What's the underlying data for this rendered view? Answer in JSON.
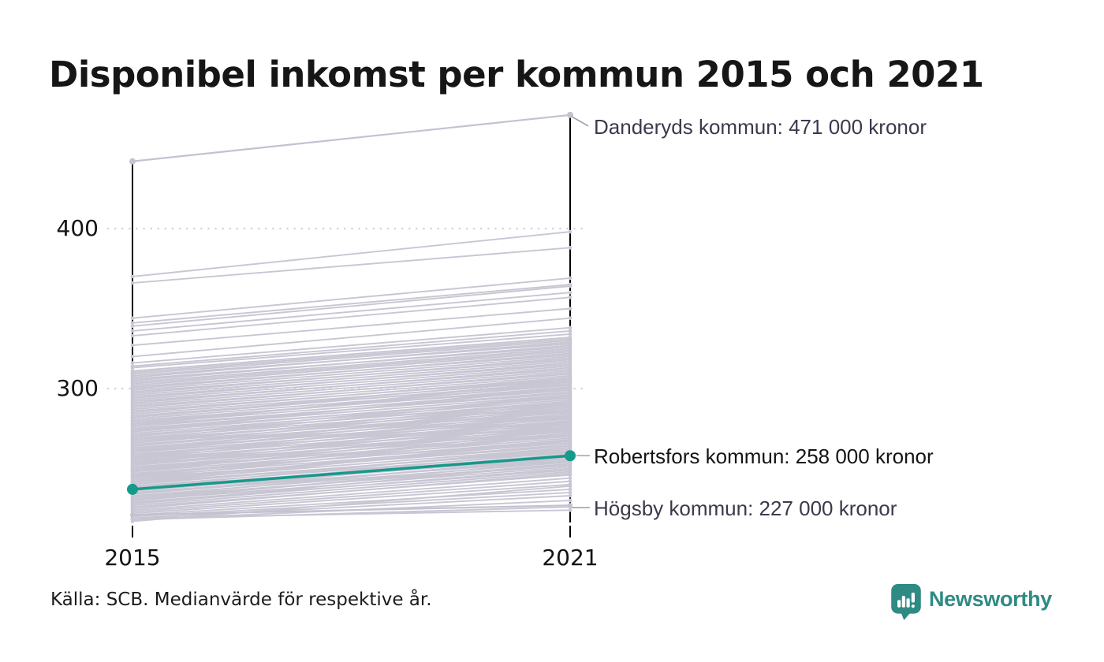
{
  "title": "Disponibel inkomst per kommun 2015 och 2021",
  "source": "Källa: SCB. Medianvärde för respektive år.",
  "branding": {
    "name": "Newsworthy",
    "icon": "bar-chart-pin-icon"
  },
  "axes": {
    "x_ticks": [
      "2015",
      "2021"
    ],
    "y_ticks": [
      "400",
      "300"
    ]
  },
  "annotations": [
    {
      "id": "danderyd",
      "label": "Danderyds kommun: 471 000 kronor",
      "value": 471,
      "year": 2021,
      "highlighted": false
    },
    {
      "id": "robertsfors",
      "label": "Robertsfors kommun: 258 000 kronor",
      "value": 258,
      "year": 2021,
      "highlighted": true
    },
    {
      "id": "hogsby",
      "label": "Högsby kommun: 227 000 kronor",
      "value": 227,
      "year": 2021,
      "highlighted": false
    }
  ],
  "colors": {
    "highlight": "#17998a",
    "background_line": "#c8c6d3",
    "labeled_line": "#c4c2d0",
    "annotation_text": "#3a3a4c",
    "highlight_annotation_text": "#141414",
    "grid": "#d6d5da",
    "axis": "#000000",
    "leader": "#a3a1b0",
    "brand_teal": "#2f8a84"
  },
  "chart_data": {
    "type": "line",
    "subtype": "slopegraph",
    "title": "Disponibel inkomst per kommun 2015 och 2021",
    "x": [
      2015,
      2021
    ],
    "y_tick_values": [
      400,
      300
    ],
    "y_unit": "tusen kronor",
    "ylim": [
      216,
      471
    ],
    "grid": "dotted horizontal lines at y ticks",
    "legend": "none",
    "series": [
      {
        "name": "Danderyds kommun",
        "values": [
          442,
          471
        ],
        "style": "gray-labeled",
        "dot_r": 4
      },
      {
        "name": "Robertsfors kommun",
        "values": [
          237,
          258
        ],
        "style": "highlight",
        "dot_r": 7
      },
      {
        "name": "Högsby kommun",
        "values": [
          221,
          227
        ],
        "style": "gray-labeled",
        "dot_r": 3
      }
    ],
    "background_series": [
      [
        370,
        398
      ],
      [
        366,
        388
      ],
      [
        344,
        369
      ],
      [
        341,
        365
      ],
      [
        339,
        364
      ],
      [
        336,
        360
      ],
      [
        333,
        357
      ],
      [
        327,
        350
      ],
      [
        320,
        344
      ],
      [
        316,
        338
      ],
      [
        314,
        336
      ],
      [
        313,
        334
      ],
      [
        311,
        332
      ],
      [
        310,
        331
      ],
      [
        309,
        330
      ],
      [
        308,
        328
      ],
      [
        307,
        329
      ],
      [
        306,
        326
      ],
      [
        305,
        327
      ],
      [
        304,
        325
      ],
      [
        303,
        324
      ],
      [
        302,
        323
      ],
      [
        301,
        321
      ],
      [
        300,
        322
      ],
      [
        299,
        320
      ],
      [
        298,
        318
      ],
      [
        297,
        319
      ],
      [
        296,
        317
      ],
      [
        295,
        315
      ],
      [
        294,
        316
      ],
      [
        293,
        314
      ],
      [
        292,
        312
      ],
      [
        291,
        313
      ],
      [
        290,
        311
      ],
      [
        289,
        309
      ],
      [
        288,
        310
      ],
      [
        287,
        308
      ],
      [
        286,
        306
      ],
      [
        285,
        307
      ],
      [
        284,
        305
      ],
      [
        283,
        303
      ],
      [
        282,
        304
      ],
      [
        281,
        302
      ],
      [
        280,
        300
      ],
      [
        279,
        301
      ],
      [
        278,
        299
      ],
      [
        277,
        297
      ],
      [
        276,
        298
      ],
      [
        275,
        296
      ],
      [
        274,
        294
      ],
      [
        273,
        295
      ],
      [
        272,
        293
      ],
      [
        271,
        291
      ],
      [
        270,
        292
      ],
      [
        269,
        290
      ],
      [
        268,
        288
      ],
      [
        267,
        289
      ],
      [
        266,
        287
      ],
      [
        265,
        285
      ],
      [
        264,
        286
      ],
      [
        263,
        284
      ],
      [
        262,
        282
      ],
      [
        261,
        283
      ],
      [
        260,
        281
      ],
      [
        259,
        279
      ],
      [
        258,
        280
      ],
      [
        257,
        278
      ],
      [
        256,
        276
      ],
      [
        255,
        277
      ],
      [
        254,
        275
      ],
      [
        253,
        273
      ],
      [
        252,
        274
      ],
      [
        251,
        272
      ],
      [
        250,
        270
      ],
      [
        249,
        271
      ],
      [
        248,
        269
      ],
      [
        247,
        267
      ],
      [
        246,
        268
      ],
      [
        245,
        266
      ],
      [
        244,
        264
      ],
      [
        243,
        265
      ],
      [
        242,
        263
      ],
      [
        241,
        261
      ],
      [
        240,
        262
      ],
      [
        239,
        260
      ],
      [
        238,
        258
      ],
      [
        237,
        259
      ],
      [
        236,
        257
      ],
      [
        235,
        255
      ],
      [
        234,
        256
      ],
      [
        233,
        254
      ],
      [
        232,
        252
      ],
      [
        231,
        253
      ],
      [
        230,
        251
      ],
      [
        229,
        249
      ],
      [
        228,
        250
      ],
      [
        227,
        248
      ],
      [
        226,
        246
      ],
      [
        225,
        247
      ],
      [
        224,
        244
      ],
      [
        223,
        242
      ],
      [
        222,
        240
      ],
      [
        221,
        237
      ],
      [
        220,
        235
      ],
      [
        219,
        233
      ],
      [
        218,
        230
      ],
      [
        217,
        239
      ],
      [
        219,
        224
      ],
      [
        218,
        226
      ],
      [
        282,
        306
      ],
      [
        278,
        303
      ],
      [
        274,
        300
      ],
      [
        270,
        296
      ],
      [
        266,
        292
      ],
      [
        262,
        288
      ],
      [
        258,
        284
      ],
      [
        254,
        280
      ],
      [
        250,
        276
      ],
      [
        246,
        272
      ],
      [
        242,
        268
      ],
      [
        268,
        295
      ],
      [
        264,
        291
      ],
      [
        260,
        287
      ],
      [
        256,
        283
      ],
      [
        252,
        279
      ],
      [
        248,
        275
      ],
      [
        244,
        271
      ],
      [
        273,
        301
      ],
      [
        277,
        305
      ],
      [
        261,
        290
      ],
      [
        257,
        286
      ],
      [
        253,
        282
      ],
      [
        249,
        278
      ],
      [
        245,
        274
      ],
      [
        241,
        267
      ],
      [
        238,
        263
      ],
      [
        236,
        261
      ],
      [
        234,
        259
      ],
      [
        232,
        257
      ],
      [
        230,
        255
      ],
      [
        228,
        253
      ]
    ]
  }
}
